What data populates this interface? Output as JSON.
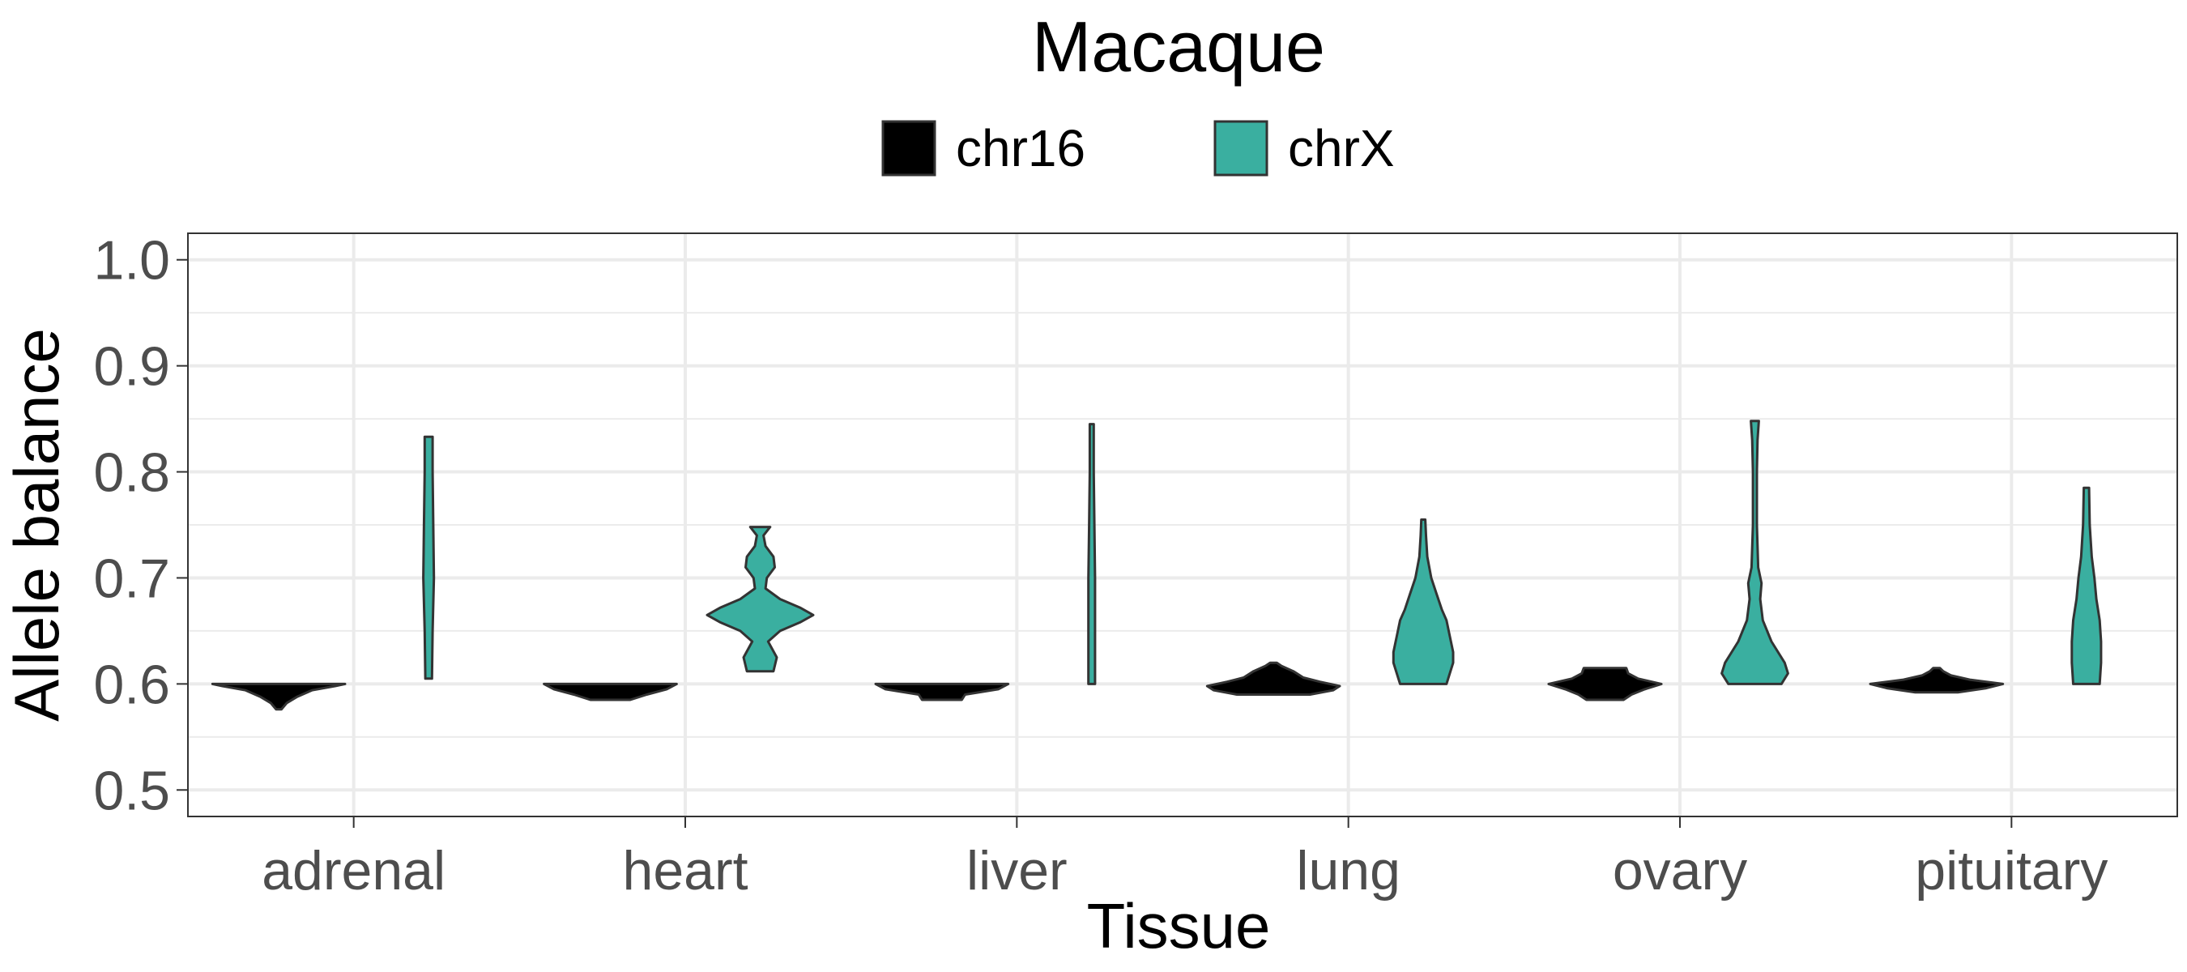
{
  "chart_data": {
    "type": "violin",
    "title": "Macaque",
    "xlabel": "Tissue",
    "ylabel": "Allele balance",
    "ylim": [
      0.475,
      1.025
    ],
    "yticks": [
      0.5,
      0.6,
      0.7,
      0.8,
      0.9,
      1.0
    ],
    "ytick_labels": [
      "0.5",
      "0.6",
      "0.7",
      "0.8",
      "0.9",
      "1.0"
    ],
    "categories": [
      "adrenal",
      "heart",
      "liver",
      "lung",
      "ovary",
      "pituitary"
    ],
    "grid": true,
    "legend_position": "top",
    "series": [
      {
        "name": "chr16",
        "color": "#000000",
        "violins": [
          {
            "min": 0.576,
            "max": 0.6,
            "profile": [
              [
                0.576,
                0.04
              ],
              [
                0.582,
                0.12
              ],
              [
                0.588,
                0.28
              ],
              [
                0.594,
                0.5
              ],
              [
                0.598,
                0.85
              ],
              [
                0.6,
                1.0
              ]
            ]
          },
          {
            "min": 0.585,
            "max": 0.6,
            "profile": [
              [
                0.585,
                0.3
              ],
              [
                0.59,
                0.55
              ],
              [
                0.595,
                0.85
              ],
              [
                0.6,
                1.0
              ]
            ]
          },
          {
            "min": 0.585,
            "max": 0.6,
            "profile": [
              [
                0.585,
                0.3
              ],
              [
                0.59,
                0.35
              ],
              [
                0.595,
                0.85
              ],
              [
                0.6,
                1.0
              ]
            ]
          },
          {
            "min": 0.59,
            "max": 0.62,
            "profile": [
              [
                0.59,
                0.55
              ],
              [
                0.594,
                0.9
              ],
              [
                0.598,
                1.0
              ],
              [
                0.602,
                0.7
              ],
              [
                0.606,
                0.45
              ],
              [
                0.612,
                0.3
              ],
              [
                0.617,
                0.12
              ],
              [
                0.62,
                0.05
              ]
            ]
          },
          {
            "min": 0.585,
            "max": 0.615,
            "profile": [
              [
                0.585,
                0.28
              ],
              [
                0.59,
                0.4
              ],
              [
                0.595,
                0.6
              ],
              [
                0.6,
                0.85
              ],
              [
                0.605,
                0.5
              ],
              [
                0.61,
                0.35
              ],
              [
                0.615,
                0.32
              ]
            ]
          },
          {
            "min": 0.592,
            "max": 0.615,
            "profile": [
              [
                0.592,
                0.32
              ],
              [
                0.596,
                0.75
              ],
              [
                0.6,
                1.0
              ],
              [
                0.604,
                0.5
              ],
              [
                0.608,
                0.22
              ],
              [
                0.612,
                0.1
              ],
              [
                0.615,
                0.05
              ]
            ]
          }
        ]
      },
      {
        "name": "chrX",
        "color": "#3aafa0",
        "violins": [
          {
            "min": 0.605,
            "max": 0.833,
            "profile": [
              [
                0.605,
                0.05
              ],
              [
                0.65,
                0.06
              ],
              [
                0.7,
                0.08
              ],
              [
                0.75,
                0.07
              ],
              [
                0.8,
                0.06
              ],
              [
                0.833,
                0.06
              ]
            ]
          },
          {
            "min": 0.612,
            "max": 0.748,
            "profile": [
              [
                0.612,
                0.2
              ],
              [
                0.625,
                0.25
              ],
              [
                0.64,
                0.12
              ],
              [
                0.65,
                0.3
              ],
              [
                0.658,
                0.6
              ],
              [
                0.665,
                0.8
              ],
              [
                0.672,
                0.6
              ],
              [
                0.68,
                0.3
              ],
              [
                0.69,
                0.08
              ],
              [
                0.7,
                0.1
              ],
              [
                0.71,
                0.22
              ],
              [
                0.72,
                0.2
              ],
              [
                0.73,
                0.08
              ],
              [
                0.74,
                0.05
              ],
              [
                0.748,
                0.15
              ]
            ]
          },
          {
            "min": 0.6,
            "max": 0.845,
            "profile": [
              [
                0.6,
                0.05
              ],
              [
                0.62,
                0.05
              ],
              [
                0.65,
                0.05
              ],
              [
                0.7,
                0.05
              ],
              [
                0.75,
                0.04
              ],
              [
                0.8,
                0.03
              ],
              [
                0.845,
                0.03
              ]
            ]
          },
          {
            "min": 0.6,
            "max": 0.755,
            "profile": [
              [
                0.6,
                0.35
              ],
              [
                0.61,
                0.4
              ],
              [
                0.62,
                0.45
              ],
              [
                0.63,
                0.45
              ],
              [
                0.645,
                0.4
              ],
              [
                0.66,
                0.35
              ],
              [
                0.67,
                0.28
              ],
              [
                0.685,
                0.2
              ],
              [
                0.7,
                0.12
              ],
              [
                0.72,
                0.06
              ],
              [
                0.74,
                0.04
              ],
              [
                0.755,
                0.03
              ]
            ]
          },
          {
            "min": 0.6,
            "max": 0.848,
            "profile": [
              [
                0.6,
                0.4
              ],
              [
                0.61,
                0.5
              ],
              [
                0.62,
                0.45
              ],
              [
                0.64,
                0.25
              ],
              [
                0.66,
                0.12
              ],
              [
                0.68,
                0.08
              ],
              [
                0.695,
                0.1
              ],
              [
                0.71,
                0.05
              ],
              [
                0.75,
                0.03
              ],
              [
                0.8,
                0.03
              ],
              [
                0.83,
                0.04
              ],
              [
                0.848,
                0.06
              ]
            ]
          },
          {
            "min": 0.6,
            "max": 0.785,
            "profile": [
              [
                0.6,
                0.2
              ],
              [
                0.62,
                0.22
              ],
              [
                0.64,
                0.22
              ],
              [
                0.66,
                0.2
              ],
              [
                0.68,
                0.15
              ],
              [
                0.7,
                0.12
              ],
              [
                0.72,
                0.08
              ],
              [
                0.75,
                0.05
              ],
              [
                0.785,
                0.04
              ]
            ]
          }
        ]
      }
    ]
  }
}
